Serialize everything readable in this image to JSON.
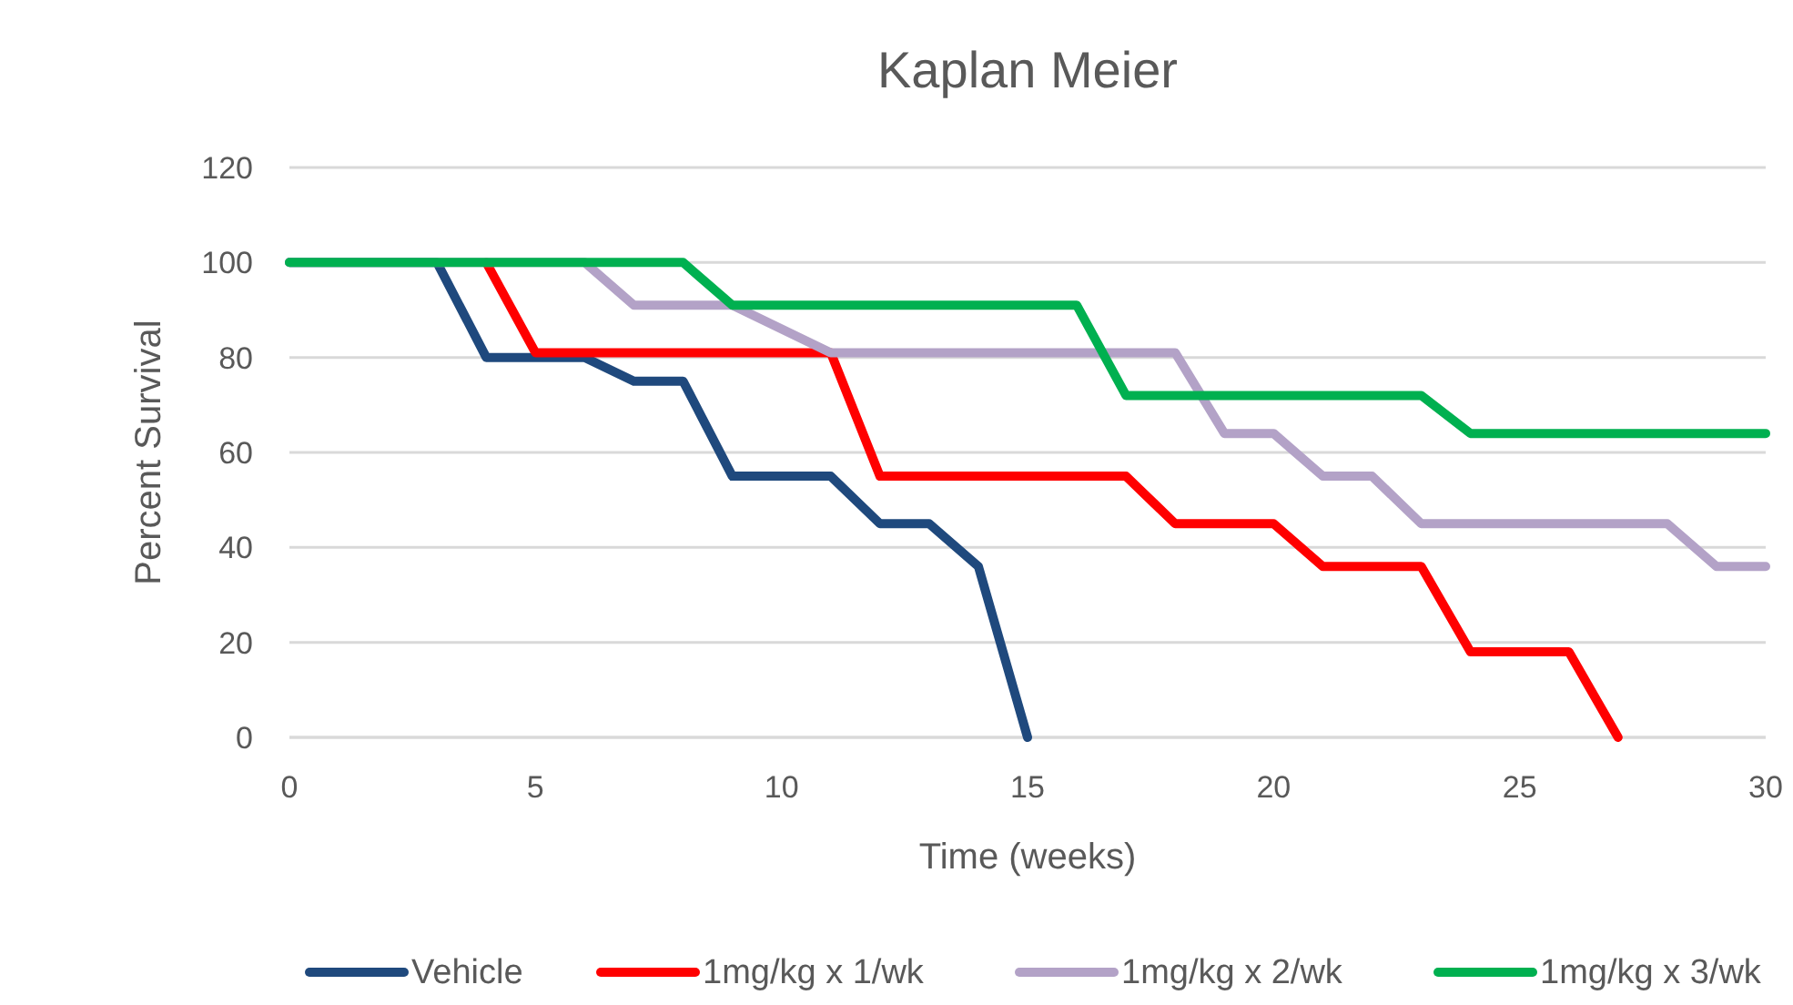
{
  "chart_data": {
    "type": "line",
    "title": "Kaplan Meier",
    "xlabel": "Time (weeks)",
    "ylabel": "Percent Survival",
    "xlim": [
      0,
      30
    ],
    "xticks": [
      0,
      5,
      10,
      15,
      20,
      25,
      30
    ],
    "ylim": [
      0,
      120
    ],
    "yticks": [
      0,
      20,
      40,
      60,
      80,
      100,
      120
    ],
    "grid": "y",
    "legend": "bottom",
    "line_style": "solid",
    "marker": "none",
    "series": [
      {
        "name": "Vehicle",
        "color": "#1f497d",
        "x": [
          0,
          3,
          4,
          6,
          7,
          8,
          9,
          11,
          12,
          13,
          14,
          15
        ],
        "values": [
          100,
          100,
          80,
          80,
          75,
          75,
          55,
          55,
          45,
          45,
          36,
          0
        ]
      },
      {
        "name": "1mg/kg x 1/wk",
        "color": "#ff0000",
        "x": [
          4,
          5,
          11,
          12,
          17,
          18,
          20,
          21,
          23,
          24,
          26,
          27
        ],
        "values": [
          100,
          81,
          81,
          55,
          55,
          45,
          45,
          36,
          36,
          18,
          18,
          0
        ]
      },
      {
        "name": "1mg/kg x 2/wk",
        "color": "#b3a2c7",
        "x": [
          0,
          6,
          7,
          9,
          11,
          18,
          19,
          20,
          21,
          22,
          23,
          28,
          29,
          30
        ],
        "values": [
          100,
          100,
          91,
          91,
          81,
          81,
          64,
          64,
          55,
          55,
          45,
          45,
          36,
          36
        ]
      },
      {
        "name": "1mg/kg x 3/wk",
        "color": "#00b050",
        "x": [
          0,
          8,
          9,
          16,
          17,
          23,
          24,
          30
        ],
        "values": [
          100,
          100,
          91,
          91,
          72,
          72,
          64,
          64
        ]
      }
    ]
  }
}
